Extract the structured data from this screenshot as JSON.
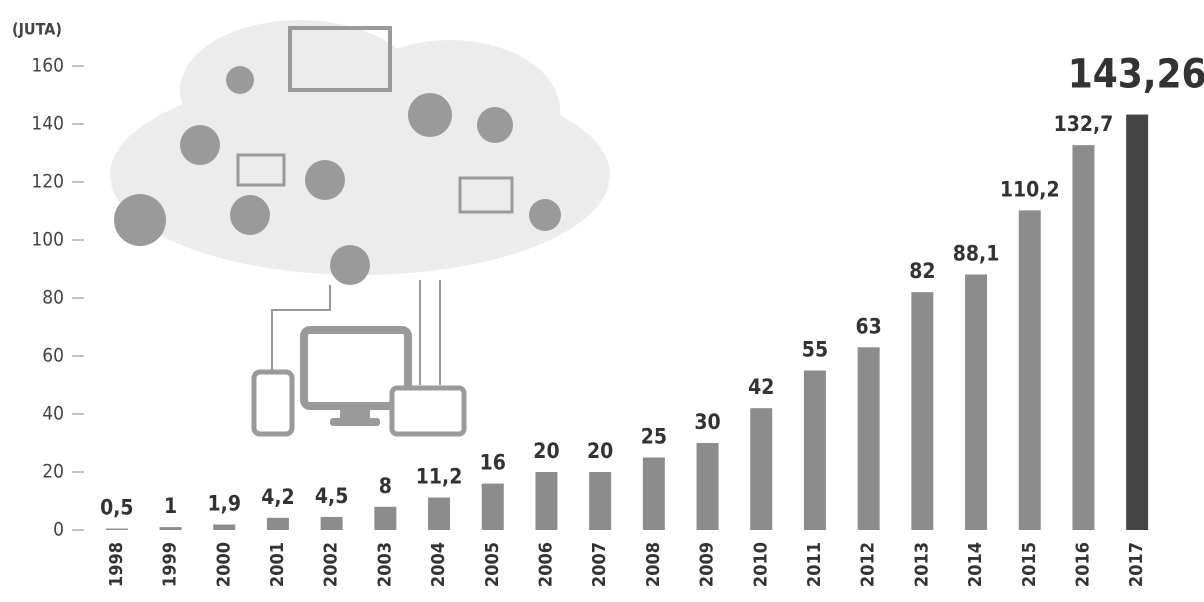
{
  "chart_data": {
    "type": "bar",
    "y_axis_label": "(JUTA)",
    "categories": [
      "1998",
      "1999",
      "2000",
      "2001",
      "2002",
      "2003",
      "2004",
      "2005",
      "2006",
      "2007",
      "2008",
      "2009",
      "2010",
      "2011",
      "2012",
      "2013",
      "2014",
      "2015",
      "2016",
      "2017"
    ],
    "values": [
      0.5,
      1,
      1.9,
      4.2,
      4.5,
      8,
      11.2,
      16,
      20,
      20,
      25,
      30,
      42,
      55,
      63,
      82,
      88.1,
      110.2,
      132.7,
      143.26
    ],
    "value_labels": [
      "0,5",
      "1",
      "1,9",
      "4,2",
      "4,5",
      "8",
      "11,2",
      "16",
      "20",
      "20",
      "25",
      "30",
      "42",
      "55",
      "63",
      "82",
      "88,1",
      "110,2",
      "132,7",
      "143,26"
    ],
    "colors": [
      "#8c8c8c",
      "#8c8c8c",
      "#8c8c8c",
      "#8c8c8c",
      "#8c8c8c",
      "#8c8c8c",
      "#8c8c8c",
      "#8c8c8c",
      "#8c8c8c",
      "#8c8c8c",
      "#8c8c8c",
      "#8c8c8c",
      "#8c8c8c",
      "#8c8c8c",
      "#8c8c8c",
      "#8c8c8c",
      "#8c8c8c",
      "#8c8c8c",
      "#8c8c8c",
      "#444444"
    ],
    "ylim": [
      0,
      160
    ],
    "yticks": [
      0,
      20,
      40,
      60,
      80,
      100,
      120,
      140,
      160
    ],
    "grid": false
  }
}
